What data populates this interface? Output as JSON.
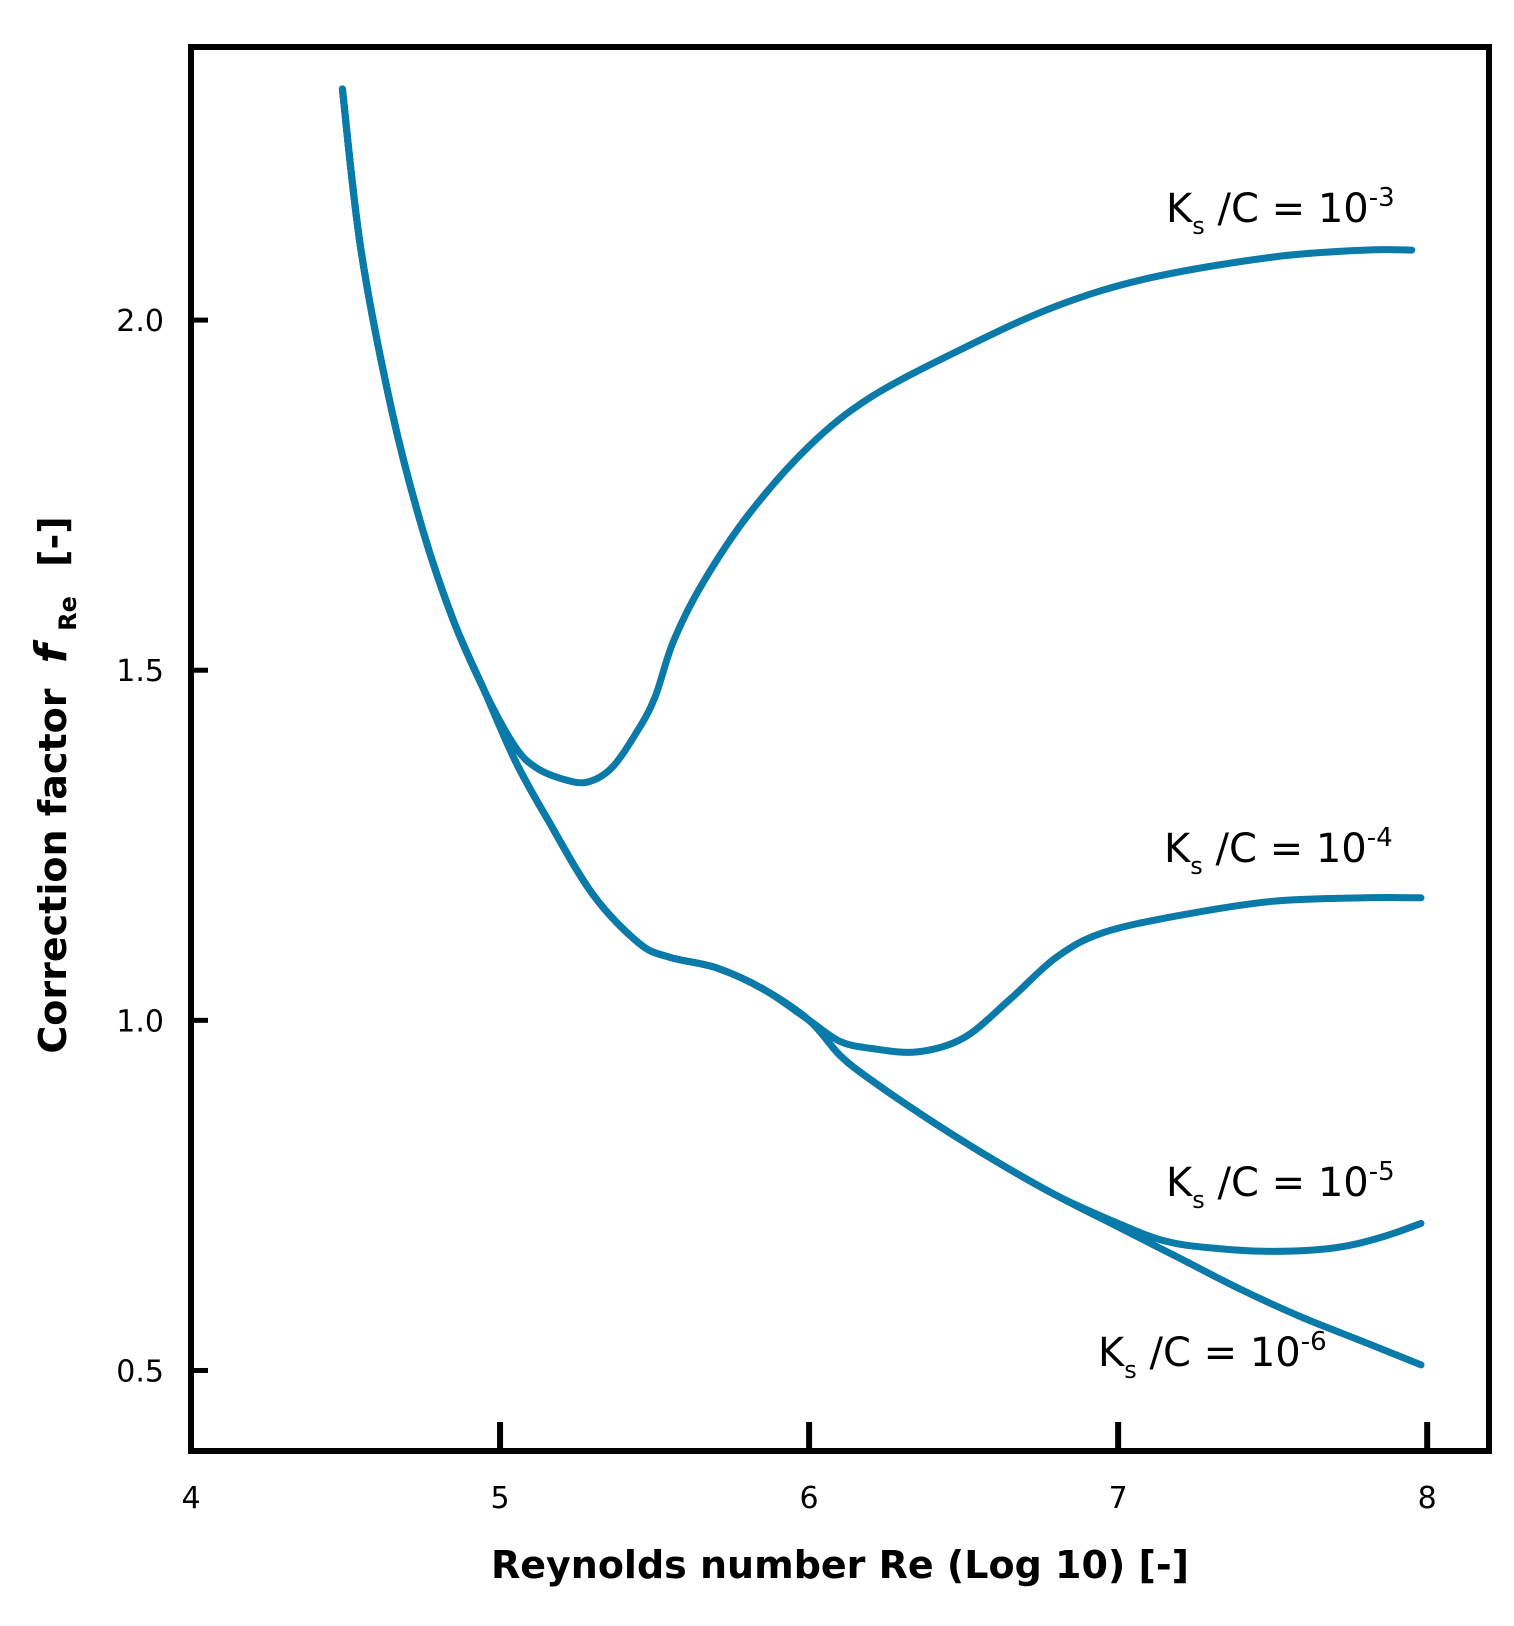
{
  "chart_data": {
    "type": "line",
    "xlabel": "Reynolds number Re (Log 10) [-]",
    "ylabel": {
      "prefix": "Correction factor",
      "symbol": "f",
      "symbol_sub": "Re",
      "unit": "[-]"
    },
    "xlim": [
      4,
      8.2
    ],
    "ylim": [
      0.385,
      2.39
    ],
    "xticks": [
      4,
      5,
      6,
      7,
      8
    ],
    "yticks": [
      0.5,
      1.0,
      1.5,
      2.0
    ],
    "ytick_labels": [
      "0.5",
      "1.0",
      "1.5",
      "2.0"
    ],
    "grid": false,
    "color": "#0a7aa8",
    "series": [
      {
        "name": "Ks/C = 10^-3",
        "label": {
          "base": "K",
          "sub": "s",
          "mid": " /C = 10",
          "sup": "-3"
        },
        "x": [
          4.49,
          4.55,
          4.65,
          4.75,
          4.85,
          4.95,
          5.05,
          5.12,
          5.2,
          5.28,
          5.36,
          5.44,
          5.5,
          5.56,
          5.65,
          5.8,
          6.0,
          6.2,
          6.5,
          6.8,
          7.1,
          7.5,
          7.8,
          7.95
        ],
        "y": [
          2.33,
          2.1,
          1.87,
          1.7,
          1.57,
          1.47,
          1.39,
          1.36,
          1.345,
          1.34,
          1.36,
          1.41,
          1.46,
          1.54,
          1.62,
          1.72,
          1.82,
          1.89,
          1.96,
          2.02,
          2.06,
          2.09,
          2.1,
          2.1
        ]
      },
      {
        "name": "Ks/C = 10^-4",
        "label": {
          "base": "K",
          "sub": "s",
          "mid": " /C = 10",
          "sup": "-4"
        },
        "x": [
          4.49,
          4.55,
          4.65,
          4.75,
          4.85,
          4.95,
          5.05,
          5.15,
          5.3,
          5.45,
          5.55,
          5.7,
          5.85,
          6.0,
          6.1,
          6.2,
          6.35,
          6.5,
          6.65,
          6.8,
          6.95,
          7.2,
          7.5,
          7.8,
          7.98
        ],
        "y": [
          2.33,
          2.1,
          1.87,
          1.7,
          1.57,
          1.47,
          1.37,
          1.29,
          1.18,
          1.11,
          1.09,
          1.075,
          1.045,
          1.0,
          0.97,
          0.96,
          0.955,
          0.975,
          1.03,
          1.09,
          1.125,
          1.15,
          1.17,
          1.175,
          1.175
        ]
      },
      {
        "name": "Ks/C = 10^-5",
        "label": {
          "base": "K",
          "sub": "s",
          "mid": " /C = 10",
          "sup": "-5"
        },
        "x": [
          4.49,
          4.55,
          4.65,
          4.75,
          4.85,
          4.95,
          5.05,
          5.15,
          5.3,
          5.45,
          5.55,
          5.7,
          5.85,
          6.0,
          6.1,
          6.2,
          6.4,
          6.6,
          6.8,
          7.0,
          7.15,
          7.3,
          7.5,
          7.7,
          7.85,
          7.98
        ],
        "y": [
          2.33,
          2.1,
          1.87,
          1.7,
          1.57,
          1.47,
          1.37,
          1.29,
          1.18,
          1.11,
          1.09,
          1.075,
          1.045,
          1.0,
          0.95,
          0.915,
          0.855,
          0.8,
          0.75,
          0.71,
          0.685,
          0.675,
          0.67,
          0.675,
          0.69,
          0.71
        ]
      },
      {
        "name": "Ks/C = 10^-6",
        "label": {
          "base": "K",
          "sub": "s",
          "mid": " /C = 10",
          "sup": "-6"
        },
        "x": [
          4.49,
          4.55,
          4.65,
          4.75,
          4.85,
          4.95,
          5.05,
          5.15,
          5.3,
          5.45,
          5.55,
          5.7,
          5.85,
          6.0,
          6.1,
          6.2,
          6.4,
          6.6,
          6.8,
          7.0,
          7.2,
          7.4,
          7.6,
          7.8,
          7.98
        ],
        "y": [
          2.33,
          2.1,
          1.87,
          1.7,
          1.57,
          1.47,
          1.37,
          1.29,
          1.18,
          1.11,
          1.09,
          1.075,
          1.045,
          1.0,
          0.95,
          0.915,
          0.855,
          0.8,
          0.75,
          0.705,
          0.66,
          0.615,
          0.575,
          0.54,
          0.508
        ]
      }
    ]
  }
}
